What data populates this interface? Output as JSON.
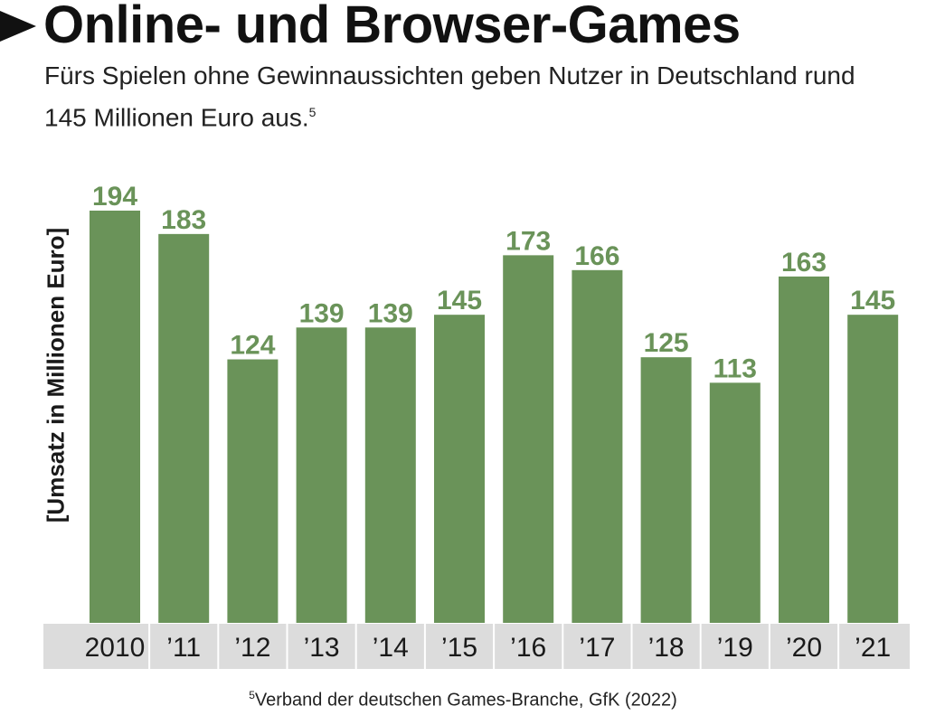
{
  "header": {
    "title": "Online- und Browser-Games",
    "subtitle": "Fürs Spielen ohne Gewinnaussichten geben Nutzer in Deutschland rund 145 Millionen Euro aus.",
    "subtitle_ref": "5"
  },
  "footnote": {
    "ref": "5",
    "text": "Verband der deutschen Games-Branche, GfK (2022)"
  },
  "colors": {
    "bar": "#6a9359",
    "value_label": "#6a9359",
    "axis_band": "#dcdcdc",
    "text": "#1a1a1a"
  },
  "chart_data": {
    "type": "bar",
    "ylabel": "[Umsatz in Millionen Euro]",
    "categories": [
      "2010",
      "’11",
      "’12",
      "’13",
      "’14",
      "’15",
      "’16",
      "’17",
      "’18",
      "’19",
      "’20",
      "’21"
    ],
    "values": [
      194,
      183,
      124,
      139,
      139,
      145,
      173,
      166,
      125,
      113,
      163,
      145
    ],
    "ylim": [
      0,
      194
    ],
    "grid": false,
    "legend": "none"
  }
}
